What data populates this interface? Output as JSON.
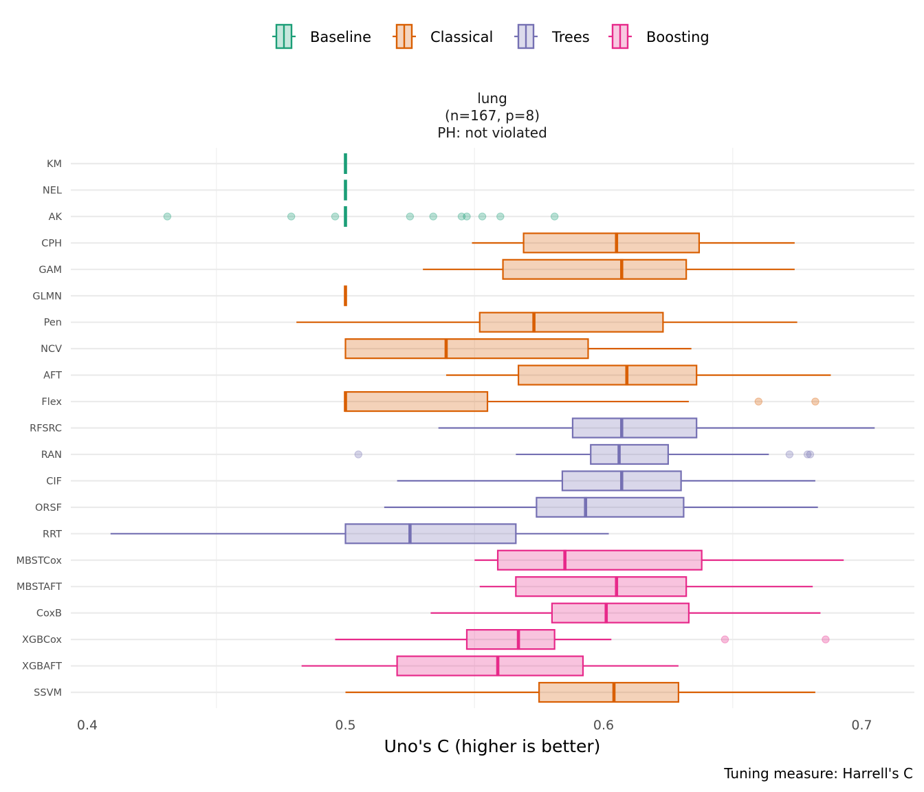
{
  "legend": {
    "items": [
      {
        "label": "Baseline",
        "color": "#1B9E77",
        "fill": "#C6E7DD"
      },
      {
        "label": "Classical",
        "color": "#D95F02",
        "fill": "#F4D5BF"
      },
      {
        "label": "Trees",
        "color": "#7570B3",
        "fill": "#DCDBEC"
      },
      {
        "label": "Boosting",
        "color": "#E7298A",
        "fill": "#F8C9E1"
      }
    ]
  },
  "chart_data": {
    "type": "boxplot",
    "title_lines": [
      "lung",
      "(n=167, p=8)",
      "PH: not violated"
    ],
    "xlabel": "Uno's C (higher is better)",
    "ylabel": "",
    "caption": "Tuning measure: Harrell's C",
    "xlim": [
      0.39,
      0.719
    ],
    "xticks": [
      0.4,
      0.5,
      0.6,
      0.7
    ],
    "xtick_labels": [
      "0.4",
      "0.5",
      "0.6",
      "0.7"
    ],
    "minor_xticks": [
      0.45,
      0.55,
      0.65
    ],
    "grid": true,
    "legend_position": "top",
    "categories": [
      "KM",
      "NEL",
      "AK",
      "CPH",
      "GAM",
      "GLMN",
      "Pen",
      "NCV",
      "AFT",
      "Flex",
      "RFSRC",
      "RAN",
      "CIF",
      "ORSF",
      "RRT",
      "MBSTCox",
      "MBSTAFT",
      "CoxB",
      "XGBCox",
      "XGBAFT",
      "SSVM"
    ],
    "boxes": [
      {
        "model": "KM",
        "group": "Baseline",
        "whisker_low": 0.5,
        "q1": 0.5,
        "median": 0.5,
        "q3": 0.5,
        "whisker_high": 0.5,
        "outliers": []
      },
      {
        "model": "NEL",
        "group": "Baseline",
        "whisker_low": 0.5,
        "q1": 0.5,
        "median": 0.5,
        "q3": 0.5,
        "whisker_high": 0.5,
        "outliers": []
      },
      {
        "model": "AK",
        "group": "Baseline",
        "whisker_low": 0.5,
        "q1": 0.5,
        "median": 0.5,
        "q3": 0.5,
        "whisker_high": 0.5,
        "outliers": [
          0.431,
          0.479,
          0.496,
          0.525,
          0.534,
          0.545,
          0.547,
          0.553,
          0.56,
          0.581
        ]
      },
      {
        "model": "CPH",
        "group": "Classical",
        "whisker_low": 0.549,
        "q1": 0.569,
        "median": 0.605,
        "q3": 0.637,
        "whisker_high": 0.674,
        "outliers": []
      },
      {
        "model": "GAM",
        "group": "Classical",
        "whisker_low": 0.53,
        "q1": 0.561,
        "median": 0.607,
        "q3": 0.632,
        "whisker_high": 0.674,
        "outliers": []
      },
      {
        "model": "GLMN",
        "group": "Classical",
        "whisker_low": 0.5,
        "q1": 0.5,
        "median": 0.5,
        "q3": 0.5,
        "whisker_high": 0.5,
        "outliers": []
      },
      {
        "model": "Pen",
        "group": "Classical",
        "whisker_low": 0.481,
        "q1": 0.552,
        "median": 0.573,
        "q3": 0.623,
        "whisker_high": 0.675,
        "outliers": []
      },
      {
        "model": "NCV",
        "group": "Classical",
        "whisker_low": 0.5,
        "q1": 0.5,
        "median": 0.539,
        "q3": 0.594,
        "whisker_high": 0.634,
        "outliers": []
      },
      {
        "model": "AFT",
        "group": "Classical",
        "whisker_low": 0.539,
        "q1": 0.567,
        "median": 0.609,
        "q3": 0.636,
        "whisker_high": 0.688,
        "outliers": []
      },
      {
        "model": "Flex",
        "group": "Classical",
        "whisker_low": 0.5,
        "q1": 0.5,
        "median": 0.5,
        "q3": 0.555,
        "whisker_high": 0.633,
        "outliers": [
          0.66,
          0.682
        ]
      },
      {
        "model": "RFSRC",
        "group": "Trees",
        "whisker_low": 0.536,
        "q1": 0.588,
        "median": 0.607,
        "q3": 0.636,
        "whisker_high": 0.705,
        "outliers": []
      },
      {
        "model": "RAN",
        "group": "Trees",
        "whisker_low": 0.566,
        "q1": 0.595,
        "median": 0.606,
        "q3": 0.625,
        "whisker_high": 0.664,
        "outliers": [
          0.505,
          0.672,
          0.679,
          0.68
        ]
      },
      {
        "model": "CIF",
        "group": "Trees",
        "whisker_low": 0.52,
        "q1": 0.584,
        "median": 0.607,
        "q3": 0.63,
        "whisker_high": 0.682,
        "outliers": []
      },
      {
        "model": "ORSF",
        "group": "Trees",
        "whisker_low": 0.515,
        "q1": 0.574,
        "median": 0.593,
        "q3": 0.631,
        "whisker_high": 0.683,
        "outliers": []
      },
      {
        "model": "RRT",
        "group": "Trees",
        "whisker_low": 0.409,
        "q1": 0.5,
        "median": 0.525,
        "q3": 0.566,
        "whisker_high": 0.602,
        "outliers": []
      },
      {
        "model": "MBSTCox",
        "group": "Boosting",
        "whisker_low": 0.55,
        "q1": 0.559,
        "median": 0.585,
        "q3": 0.638,
        "whisker_high": 0.693,
        "outliers": []
      },
      {
        "model": "MBSTAFT",
        "group": "Boosting",
        "whisker_low": 0.552,
        "q1": 0.566,
        "median": 0.605,
        "q3": 0.632,
        "whisker_high": 0.681,
        "outliers": []
      },
      {
        "model": "CoxB",
        "group": "Boosting",
        "whisker_low": 0.533,
        "q1": 0.58,
        "median": 0.601,
        "q3": 0.633,
        "whisker_high": 0.684,
        "outliers": []
      },
      {
        "model": "XGBCox",
        "group": "Boosting",
        "whisker_low": 0.496,
        "q1": 0.547,
        "median": 0.567,
        "q3": 0.581,
        "whisker_high": 0.603,
        "outliers": [
          0.647,
          0.686
        ]
      },
      {
        "model": "XGBAFT",
        "group": "Boosting",
        "whisker_low": 0.483,
        "q1": 0.52,
        "median": 0.559,
        "q3": 0.592,
        "whisker_high": 0.629,
        "outliers": []
      },
      {
        "model": "SSVM",
        "group": "Classical",
        "whisker_low": 0.5,
        "q1": 0.575,
        "median": 0.604,
        "q3": 0.629,
        "whisker_high": 0.682,
        "outliers": []
      }
    ]
  }
}
